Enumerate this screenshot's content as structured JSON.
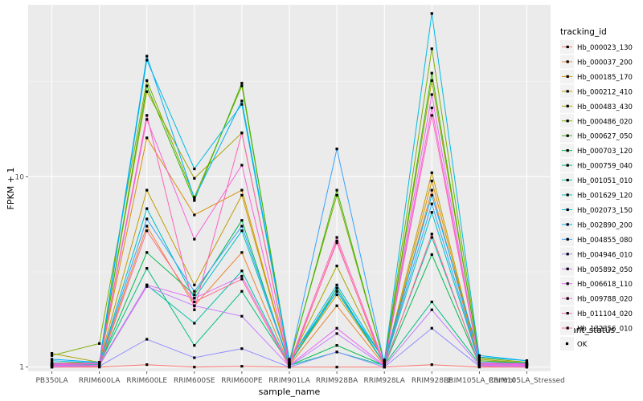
{
  "chart_data": {
    "type": "line",
    "xlabel": "sample_name",
    "ylabel": "FPKM + 1",
    "y_scale": "log10",
    "ylim": [
      0.95,
      80
    ],
    "y_ticks": [
      {
        "value": 1,
        "label": "1"
      },
      {
        "value": 10,
        "label": "10"
      }
    ],
    "grid": true,
    "legend_placement": "right",
    "categories": [
      "PB350LA",
      "RRIM600LA",
      "RRIM600LE",
      "RRIM600SE",
      "RRIM600PE",
      "RRIM901LA",
      "RRIM928BA",
      "RRIM928LA",
      "RRIM928LE",
      "RRIM105LA_Control",
      "RRIM105LA_Stressed"
    ],
    "legend_title": "tracking_id",
    "legend2_title": "quant_status",
    "legend2_items": [
      "OK"
    ],
    "series": [
      {
        "name": "Hb_000023_130",
        "color": "#F8766D",
        "values": [
          1.0,
          1.0,
          1.03,
          1.0,
          1.01,
          1.0,
          1.0,
          1.0,
          1.03,
          1.0,
          1.0
        ]
      },
      {
        "name": "Hb_000037_200",
        "color": "#EA8331",
        "values": [
          1.02,
          1.03,
          5.5,
          2.1,
          4.0,
          1.02,
          2.1,
          1.02,
          8.5,
          1.05,
          1.02
        ]
      },
      {
        "name": "Hb_000185_170",
        "color": "#D89000",
        "values": [
          1.05,
          1.05,
          16,
          6.3,
          8.5,
          1.05,
          2.6,
          1.03,
          9.5,
          1.05,
          1.03
        ]
      },
      {
        "name": "Hb_000212_410",
        "color": "#C09B00",
        "values": [
          1.05,
          1.06,
          8.5,
          2.7,
          8.0,
          1.05,
          2.4,
          1.04,
          10.5,
          1.05,
          1.04
        ]
      },
      {
        "name": "Hb_000483_430",
        "color": "#A3A500",
        "values": [
          1.18,
          1.06,
          28,
          9.8,
          17,
          1.06,
          3.4,
          1.05,
          32,
          1.1,
          1.05
        ]
      },
      {
        "name": "Hb_000486_020",
        "color": "#7CAE00",
        "values": [
          1.15,
          1.33,
          32,
          7.8,
          30,
          1.08,
          8.0,
          1.06,
          47,
          1.12,
          1.06
        ]
      },
      {
        "name": "Hb_000627_050",
        "color": "#39B600",
        "values": [
          1.04,
          1.05,
          30,
          7.5,
          31,
          1.05,
          8.5,
          1.05,
          35,
          1.08,
          1.05
        ]
      },
      {
        "name": "Hb_000703_120",
        "color": "#00BB4E",
        "values": [
          1.02,
          1.03,
          4.0,
          2.4,
          5.9,
          1.02,
          1.3,
          1.02,
          3.9,
          1.03,
          1.02
        ]
      },
      {
        "name": "Hb_000759_040",
        "color": "#00BF7D",
        "values": [
          1.03,
          1.04,
          3.3,
          1.3,
          2.5,
          1.03,
          2.6,
          1.03,
          2.2,
          1.04,
          1.03
        ]
      },
      {
        "name": "Hb_001051_010",
        "color": "#00C1A3",
        "values": [
          1.02,
          1.03,
          2.7,
          1.7,
          3.2,
          1.02,
          1.2,
          1.02,
          4.8,
          1.03,
          1.02
        ]
      },
      {
        "name": "Hb_001629_120",
        "color": "#00BFC4",
        "values": [
          1.04,
          1.04,
          6.8,
          2.3,
          5.2,
          1.04,
          2.5,
          1.04,
          6.5,
          1.05,
          1.04
        ]
      },
      {
        "name": "Hb_002073_150",
        "color": "#00BAE0",
        "values": [
          1.08,
          1.05,
          41,
          11,
          24,
          1.08,
          2.7,
          1.08,
          72,
          1.13,
          1.08
        ]
      },
      {
        "name": "Hb_002890_200",
        "color": "#00B0F6",
        "values": [
          1.1,
          1.06,
          43,
          7.7,
          25,
          1.1,
          2.5,
          1.09,
          8.0,
          1.15,
          1.08
        ]
      },
      {
        "name": "Hb_004855_080",
        "color": "#35A2FF",
        "values": [
          1.05,
          1.04,
          6.0,
          2.5,
          5.5,
          1.05,
          14,
          1.05,
          7.2,
          1.06,
          1.05
        ]
      },
      {
        "name": "Hb_004946_010",
        "color": "#9590FF",
        "values": [
          1.0,
          1.01,
          1.4,
          1.12,
          1.25,
          1.0,
          1.2,
          1.0,
          1.6,
          1.01,
          1.0
        ]
      },
      {
        "name": "Hb_005892_050",
        "color": "#C77CFF",
        "values": [
          1.01,
          1.02,
          2.65,
          2.1,
          1.85,
          1.01,
          1.5,
          1.01,
          2.0,
          1.02,
          1.01
        ]
      },
      {
        "name": "Hb_006618_110",
        "color": "#E76BF3",
        "values": [
          1.02,
          1.02,
          2.7,
          2.3,
          3.0,
          1.02,
          1.6,
          1.02,
          27,
          1.03,
          1.02
        ]
      },
      {
        "name": "Hb_009788_020",
        "color": "#FA62DB",
        "values": [
          1.03,
          1.04,
          20,
          4.7,
          11.5,
          1.03,
          4.5,
          1.03,
          23,
          1.04,
          1.03
        ]
      },
      {
        "name": "Hb_011104_020",
        "color": "#FF62BC",
        "values": [
          1.04,
          1.05,
          21,
          2.0,
          17,
          1.04,
          4.8,
          1.04,
          21,
          1.05,
          1.04
        ]
      },
      {
        "name": "Hb_132356_010",
        "color": "#FF6C91",
        "values": [
          1.0,
          1.01,
          5.2,
          2.2,
          2.9,
          1.0,
          4.6,
          1.0,
          5.0,
          1.01,
          1.0
        ]
      }
    ]
  }
}
